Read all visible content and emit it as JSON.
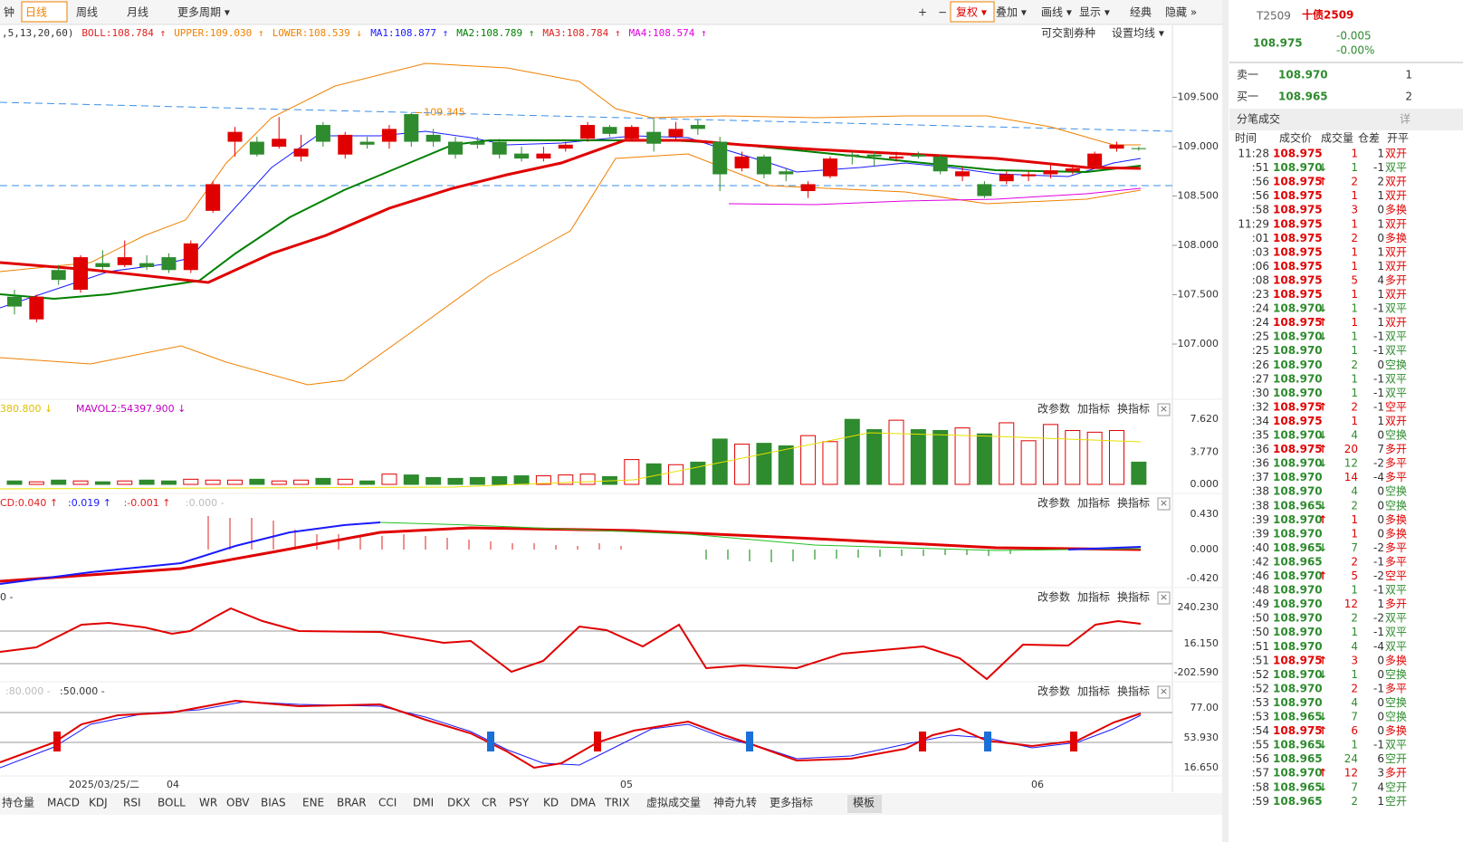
{
  "toolbar": {
    "left": [
      "钟",
      "日线",
      "周线",
      "月线",
      "更多周期 ▾"
    ],
    "right": [
      "+",
      "−",
      "复权 ▾",
      "叠加 ▾",
      "画线 ▾",
      "显示 ▾",
      "经典",
      "隐藏 »"
    ]
  },
  "main": {
    "indicators": [
      {
        "text": ",5,13,20,60)",
        "color": "#333"
      },
      {
        "text": "BOLL:108.784 ↑",
        "color": "#e02020"
      },
      {
        "text": "UPPER:109.030 ↑",
        "color": "#f08000"
      },
      {
        "text": "LOWER:108.539 ↓",
        "color": "#f08000"
      },
      {
        "text": "MA1:108.877 ↑",
        "color": "#1a1aff"
      },
      {
        "text": "MA2:108.789 ↑",
        "color": "#008000"
      },
      {
        "text": "MA3:108.784 ↑",
        "color": "#e02020"
      },
      {
        "text": "MA4:108.574 ↑",
        "color": "#e000e0"
      }
    ],
    "links": [
      "可交割券种",
      "设置均线 ▾"
    ],
    "annotation": "109.345",
    "yticks": [
      {
        "value": 109.5,
        "label": "109.500"
      },
      {
        "value": 109,
        "label": "109.000"
      },
      {
        "value": 108.5,
        "label": "108.500"
      },
      {
        "value": 108,
        "label": "108.000"
      },
      {
        "value": 107.5,
        "label": "107.500"
      },
      {
        "value": 107,
        "label": "107.000"
      }
    ],
    "candles": [
      {
        "open": 107.48,
        "close": 107.38,
        "high": 107.55,
        "low": 107.3
      },
      {
        "open": 107.25,
        "close": 107.48,
        "high": 107.5,
        "low": 107.22
      },
      {
        "open": 107.75,
        "close": 107.65,
        "high": 107.8,
        "low": 107.6
      },
      {
        "open": 107.55,
        "close": 107.88,
        "high": 107.9,
        "low": 107.52
      },
      {
        "open": 107.82,
        "close": 107.78,
        "high": 107.95,
        "low": 107.75
      },
      {
        "open": 107.8,
        "close": 107.88,
        "high": 108.05,
        "low": 107.78
      },
      {
        "open": 107.82,
        "close": 107.78,
        "high": 107.9,
        "low": 107.75
      },
      {
        "open": 107.88,
        "close": 107.75,
        "high": 107.92,
        "low": 107.72
      },
      {
        "open": 107.75,
        "close": 108.02,
        "high": 108.05,
        "low": 107.72
      },
      {
        "open": 108.35,
        "close": 108.62,
        "high": 108.65,
        "low": 108.33
      },
      {
        "open": 109.05,
        "close": 109.15,
        "high": 109.2,
        "low": 108.9
      },
      {
        "open": 109.05,
        "close": 108.92,
        "high": 109.1,
        "low": 108.9
      },
      {
        "open": 109,
        "close": 109.08,
        "high": 109.3,
        "low": 108.98
      },
      {
        "open": 108.9,
        "close": 108.98,
        "high": 109.12,
        "low": 108.85
      },
      {
        "open": 109.22,
        "close": 109.05,
        "high": 109.25,
        "low": 109
      },
      {
        "open": 108.92,
        "close": 109.12,
        "high": 109.15,
        "low": 108.88
      },
      {
        "open": 109.05,
        "close": 109.02,
        "high": 109.1,
        "low": 108.98
      },
      {
        "open": 109.05,
        "close": 109.18,
        "high": 109.22,
        "low": 108.98
      },
      {
        "open": 109.33,
        "close": 109.05,
        "high": 109.345,
        "low": 109
      },
      {
        "open": 109.12,
        "close": 109.05,
        "high": 109.18,
        "low": 109
      },
      {
        "open": 109.05,
        "close": 108.92,
        "high": 109.1,
        "low": 108.88
      },
      {
        "open": 109.05,
        "close": 109.02,
        "high": 109.1,
        "low": 108.98
      },
      {
        "open": 109.05,
        "close": 108.92,
        "high": 109.08,
        "low": 108.88
      },
      {
        "open": 108.93,
        "close": 108.88,
        "high": 109,
        "low": 108.85
      },
      {
        "open": 108.88,
        "close": 108.93,
        "high": 109,
        "low": 108.85
      },
      {
        "open": 108.98,
        "close": 109.02,
        "high": 109.05,
        "low": 108.95
      },
      {
        "open": 109.08,
        "close": 109.22,
        "high": 109.25,
        "low": 109.05
      },
      {
        "open": 109.2,
        "close": 109.13,
        "high": 109.22,
        "low": 109.1
      },
      {
        "open": 109.08,
        "close": 109.2,
        "high": 109.22,
        "low": 109.05
      },
      {
        "open": 109.15,
        "close": 109.03,
        "high": 109.28,
        "low": 108.95
      },
      {
        "open": 109.1,
        "close": 109.18,
        "high": 109.25,
        "low": 109.05
      },
      {
        "open": 109.22,
        "close": 109.18,
        "high": 109.28,
        "low": 109.12
      },
      {
        "open": 109.05,
        "close": 108.72,
        "high": 109.1,
        "low": 108.55
      },
      {
        "open": 108.78,
        "close": 108.9,
        "high": 108.95,
        "low": 108.75
      },
      {
        "open": 108.9,
        "close": 108.72,
        "high": 108.92,
        "low": 108.68
      },
      {
        "open": 108.75,
        "close": 108.72,
        "high": 108.78,
        "low": 108.65
      },
      {
        "open": 108.55,
        "close": 108.62,
        "high": 108.65,
        "low": 108.48
      },
      {
        "open": 108.7,
        "close": 108.88,
        "high": 108.9,
        "low": 108.68
      },
      {
        "open": 108.92,
        "close": 108.9,
        "high": 108.95,
        "low": 108.82
      },
      {
        "open": 108.92,
        "close": 108.9,
        "high": 108.95,
        "low": 108.8
      },
      {
        "open": 108.88,
        "close": 108.9,
        "high": 108.95,
        "low": 108.85
      },
      {
        "open": 108.92,
        "close": 108.9,
        "high": 108.95,
        "low": 108.88
      },
      {
        "open": 108.9,
        "close": 108.75,
        "high": 108.92,
        "low": 108.72
      },
      {
        "open": 108.7,
        "close": 108.75,
        "high": 108.8,
        "low": 108.65
      },
      {
        "open": 108.62,
        "close": 108.5,
        "high": 108.65,
        "low": 108.48
      },
      {
        "open": 108.65,
        "close": 108.72,
        "high": 108.75,
        "low": 108.62
      },
      {
        "open": 108.7,
        "close": 108.72,
        "high": 108.75,
        "low": 108.65
      },
      {
        "open": 108.72,
        "close": 108.76,
        "high": 108.82,
        "low": 108.68
      },
      {
        "open": 108.75,
        "close": 108.78,
        "high": 108.82,
        "low": 108.72
      },
      {
        "open": 108.8,
        "close": 108.93,
        "high": 108.95,
        "low": 108.78
      },
      {
        "open": 108.98,
        "close": 109.02,
        "high": 109.05,
        "low": 108.95
      },
      {
        "open": 108.985,
        "close": 108.975,
        "high": 109,
        "low": 108.96
      }
    ]
  },
  "volume": {
    "label1": "380.800 ↓",
    "label2": "MAVOL2:54397.900 ↓",
    "yticks": [
      {
        "value": 7.62,
        "label": "7.620"
      },
      {
        "value": 3.77,
        "label": "3.770"
      },
      {
        "value": 0,
        "label": "0.000"
      }
    ],
    "values": [
      0.4,
      0.3,
      0.5,
      0.4,
      0.3,
      0.4,
      0.5,
      0.4,
      0.6,
      0.5,
      0.5,
      0.6,
      0.4,
      0.5,
      0.7,
      0.6,
      0.4,
      1.2,
      1.1,
      0.8,
      0.7,
      0.8,
      0.9,
      1,
      1,
      1.1,
      1.2,
      0.9,
      2.9,
      2.4,
      2.3,
      2.6,
      5.3,
      4.7,
      4.8,
      4.5,
      5.7,
      5,
      7.6,
      6.4,
      7.5,
      6.4,
      6.3,
      6.6,
      5.9,
      7.2,
      5.1,
      7,
      6.3,
      6.1,
      6.3,
      2.6
    ]
  },
  "panel_buttons": [
    "改参数",
    "加指标",
    "换指标",
    "×"
  ],
  "macd": {
    "labels": [
      {
        "text": "CD:0.040 ↑",
        "color": "#e02020"
      },
      {
        "text": ":0.019 ↑",
        "color": "#1a1aff"
      },
      {
        "text": ":-0.001 ↑",
        "color": "#e02020"
      },
      {
        "text": ":0.000 -",
        "color": "#bbb"
      }
    ],
    "yticks": [
      "0.430",
      "0.000",
      "-0.420"
    ]
  },
  "cci": {
    "labels": [
      "0 -"
    ],
    "yticks": [
      "240.230",
      "16.150",
      "-202.590"
    ]
  },
  "kdj": {
    "labels": [
      ":80.000 -",
      ":50.000 -"
    ],
    "yticks": [
      "77.00",
      "53.930",
      "16.650"
    ]
  },
  "xaxis": [
    {
      "x": 115,
      "label": "2025/03/25/二"
    },
    {
      "x": 191,
      "label": "04"
    },
    {
      "x": 692,
      "label": "05"
    },
    {
      "x": 1146,
      "label": "06"
    }
  ],
  "tabs": [
    "持仓量",
    "MACD",
    "KDJ",
    "RSI",
    "BOLL",
    "WR",
    "OBV",
    "BIAS",
    "ENE",
    "BRAR",
    "CCI",
    "DMI",
    "DKX",
    "CR",
    "PSY",
    "KD",
    "DMA",
    "TRIX",
    "虚拟成交量",
    "神奇九转",
    "更多指标",
    "模板"
  ],
  "quote": {
    "code": "T2509",
    "name": "十债2509",
    "price": "108.975",
    "change": "-0.005",
    "pct": "-0.00%",
    "ask": {
      "label": "卖一",
      "price": "108.970",
      "qty": "1"
    },
    "bid": {
      "label": "买一",
      "price": "108.965",
      "qty": "2"
    },
    "trades_title": "分笔成交",
    "detail": "详",
    "headers": [
      "时间",
      "成交价",
      "成交量",
      "仓差",
      "开平"
    ],
    "trades": [
      {
        "t": "11:28",
        "p": "108.975",
        "v": "1",
        "d": "1",
        "k": "双开"
      },
      {
        "t": ":51",
        "p": "108.970",
        "a": "↓",
        "v": "1",
        "d": "-1",
        "k": "双平"
      },
      {
        "t": ":56",
        "p": "108.975",
        "a": "↑",
        "v": "2",
        "d": "2",
        "k": "双开"
      },
      {
        "t": ":56",
        "p": "108.975",
        "v": "1",
        "d": "1",
        "k": "双开"
      },
      {
        "t": ":58",
        "p": "108.975",
        "v": "3",
        "d": "0",
        "k": "多换"
      },
      {
        "t": "11:29",
        "p": "108.975",
        "v": "1",
        "d": "1",
        "k": "双开"
      },
      {
        "t": ":01",
        "p": "108.975",
        "v": "2",
        "d": "0",
        "k": "多换"
      },
      {
        "t": ":03",
        "p": "108.975",
        "v": "1",
        "d": "1",
        "k": "双开"
      },
      {
        "t": ":06",
        "p": "108.975",
        "v": "1",
        "d": "1",
        "k": "双开"
      },
      {
        "t": ":08",
        "p": "108.975",
        "v": "5",
        "d": "4",
        "k": "多开"
      },
      {
        "t": ":23",
        "p": "108.975",
        "v": "1",
        "d": "1",
        "k": "双开"
      },
      {
        "t": ":24",
        "p": "108.970",
        "a": "↓",
        "v": "1",
        "d": "-1",
        "k": "双平"
      },
      {
        "t": ":24",
        "p": "108.975",
        "a": "↑",
        "v": "1",
        "d": "1",
        "k": "双开"
      },
      {
        "t": ":25",
        "p": "108.970",
        "a": "↓",
        "v": "1",
        "d": "-1",
        "k": "双平"
      },
      {
        "t": ":25",
        "p": "108.970",
        "v": "1",
        "d": "-1",
        "k": "双平"
      },
      {
        "t": ":26",
        "p": "108.970",
        "v": "2",
        "d": "0",
        "k": "空换"
      },
      {
        "t": ":27",
        "p": "108.970",
        "v": "1",
        "d": "-1",
        "k": "双平"
      },
      {
        "t": ":30",
        "p": "108.970",
        "v": "1",
        "d": "-1",
        "k": "双平"
      },
      {
        "t": ":32",
        "p": "108.975",
        "a": "↑",
        "v": "2",
        "d": "-1",
        "k": "空平"
      },
      {
        "t": ":34",
        "p": "108.975",
        "v": "1",
        "d": "1",
        "k": "双开"
      },
      {
        "t": ":35",
        "p": "108.970",
        "a": "↓",
        "v": "4",
        "d": "0",
        "k": "空换"
      },
      {
        "t": ":36",
        "p": "108.975",
        "a": "↑",
        "v": "20",
        "d": "7",
        "k": "多开"
      },
      {
        "t": ":36",
        "p": "108.970",
        "a": "↓",
        "v": "12",
        "d": "-2",
        "k": "多平"
      },
      {
        "t": ":37",
        "p": "108.970",
        "v": "14",
        "d": "-4",
        "k": "多平"
      },
      {
        "t": ":38",
        "p": "108.970",
        "v": "4",
        "d": "0",
        "k": "空换"
      },
      {
        "t": ":38",
        "p": "108.965",
        "a": "↓",
        "v": "2",
        "d": "0",
        "k": "空换"
      },
      {
        "t": ":39",
        "p": "108.970",
        "a": "↑",
        "v": "1",
        "d": "0",
        "k": "多换"
      },
      {
        "t": ":39",
        "p": "108.970",
        "v": "1",
        "d": "0",
        "k": "多换"
      },
      {
        "t": ":40",
        "p": "108.965",
        "a": "↓",
        "v": "7",
        "d": "-2",
        "k": "多平"
      },
      {
        "t": ":42",
        "p": "108.965",
        "v": "2",
        "d": "-1",
        "k": "多平"
      },
      {
        "t": ":46",
        "p": "108.970",
        "a": "↑",
        "v": "5",
        "d": "-2",
        "k": "空平"
      },
      {
        "t": ":48",
        "p": "108.970",
        "v": "1",
        "d": "-1",
        "k": "双平"
      },
      {
        "t": ":49",
        "p": "108.970",
        "v": "12",
        "d": "1",
        "k": "多开"
      },
      {
        "t": ":50",
        "p": "108.970",
        "v": "2",
        "d": "-2",
        "k": "双平"
      },
      {
        "t": ":50",
        "p": "108.970",
        "v": "1",
        "d": "-1",
        "k": "双平"
      },
      {
        "t": ":51",
        "p": "108.970",
        "v": "4",
        "d": "-4",
        "k": "双平"
      },
      {
        "t": ":51",
        "p": "108.975",
        "a": "↑",
        "v": "3",
        "d": "0",
        "k": "多换"
      },
      {
        "t": ":52",
        "p": "108.970",
        "a": "↓",
        "v": "1",
        "d": "0",
        "k": "空换"
      },
      {
        "t": ":52",
        "p": "108.970",
        "v": "2",
        "d": "-1",
        "k": "多平"
      },
      {
        "t": ":53",
        "p": "108.970",
        "v": "4",
        "d": "0",
        "k": "空换"
      },
      {
        "t": ":53",
        "p": "108.965",
        "a": "↓",
        "v": "7",
        "d": "0",
        "k": "空换"
      },
      {
        "t": ":54",
        "p": "108.975",
        "a": "↑",
        "v": "6",
        "d": "0",
        "k": "多换"
      },
      {
        "t": ":55",
        "p": "108.965",
        "a": "↓",
        "v": "1",
        "d": "-1",
        "k": "双平"
      },
      {
        "t": ":56",
        "p": "108.965",
        "v": "24",
        "d": "6",
        "k": "空开"
      },
      {
        "t": ":57",
        "p": "108.970",
        "a": "↑",
        "v": "12",
        "d": "3",
        "k": "多开"
      },
      {
        "t": ":58",
        "p": "108.965",
        "a": "↓",
        "v": "7",
        "d": "4",
        "k": "空开"
      },
      {
        "t": ":59",
        "p": "108.965",
        "v": "2",
        "d": "1",
        "k": "空开"
      }
    ]
  }
}
